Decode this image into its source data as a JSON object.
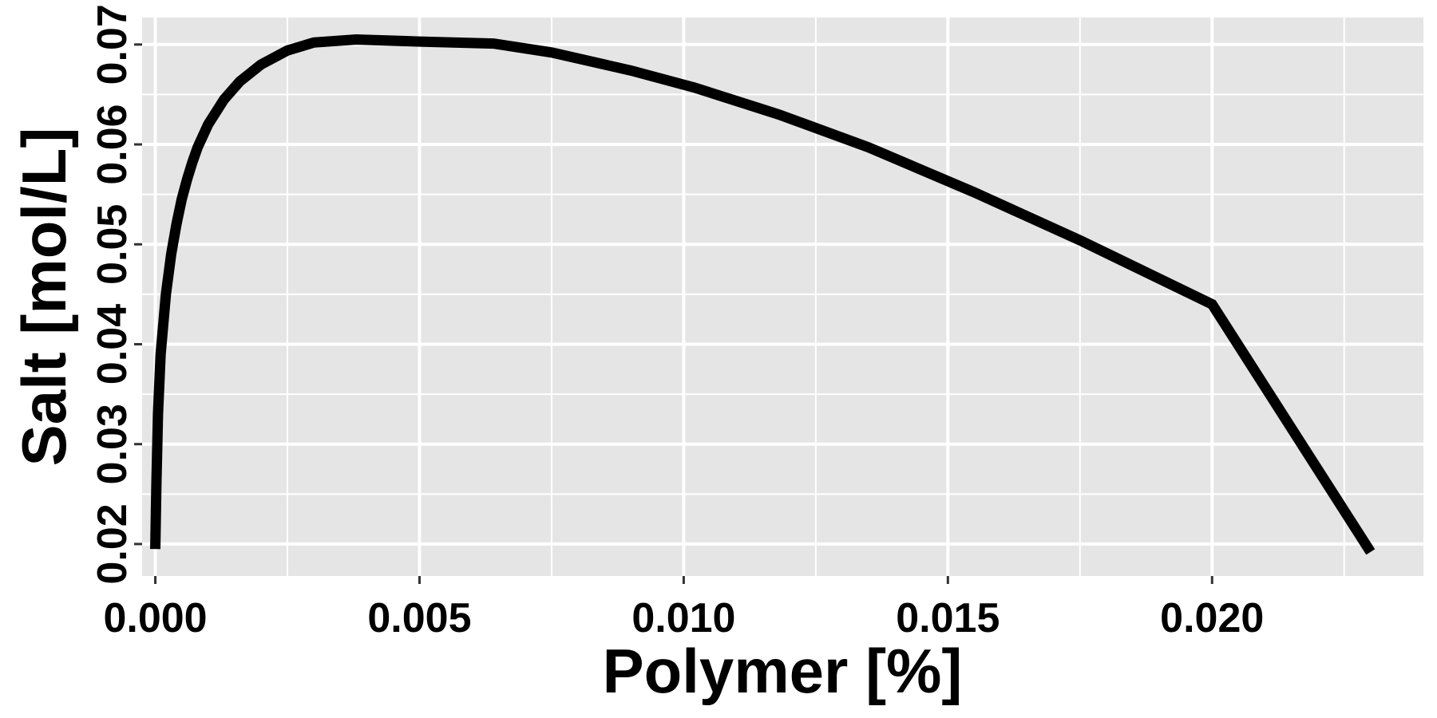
{
  "chart_data": {
    "type": "line",
    "title": "",
    "xlabel": "Polymer [%]",
    "ylabel": "Salt [mol/L]",
    "xlim": [
      -0.00025,
      0.024
    ],
    "ylim": [
      0.0168,
      0.0727
    ],
    "x_ticks": [
      0.0,
      0.005,
      0.01,
      0.015,
      0.02
    ],
    "x_tick_labels": [
      "0.000",
      "0.005",
      "0.010",
      "0.015",
      "0.020"
    ],
    "y_ticks": [
      0.02,
      0.03,
      0.04,
      0.05,
      0.06,
      0.07
    ],
    "y_tick_labels": [
      "0.02",
      "0.03",
      "0.04",
      "0.05",
      "0.06",
      "0.07"
    ],
    "grid": true,
    "legend": "none",
    "colors": {
      "panel": "#e5e5e5",
      "grid": "#ffffff",
      "line": "#000000",
      "tick": "#333333"
    },
    "series": [
      {
        "x": [
          0.0,
          2e-05,
          5e-05,
          0.0001,
          0.0002,
          0.0003,
          0.0004,
          0.0005,
          0.0006,
          0.0007,
          0.0008,
          0.001,
          0.0013,
          0.0016,
          0.002,
          0.0025,
          0.003,
          0.0038,
          0.005,
          0.0064,
          0.0075,
          0.009,
          0.0102,
          0.0118,
          0.0135,
          0.0155,
          0.0175,
          0.02,
          0.023
        ],
        "y": [
          0.0195,
          0.026,
          0.033,
          0.039,
          0.045,
          0.049,
          0.052,
          0.0545,
          0.0565,
          0.0582,
          0.0597,
          0.062,
          0.0645,
          0.0663,
          0.068,
          0.0694,
          0.0702,
          0.0705,
          0.0703,
          0.0701,
          0.0692,
          0.0674,
          0.0657,
          0.063,
          0.0597,
          0.0552,
          0.0504,
          0.044,
          0.0192
        ]
      }
    ]
  }
}
